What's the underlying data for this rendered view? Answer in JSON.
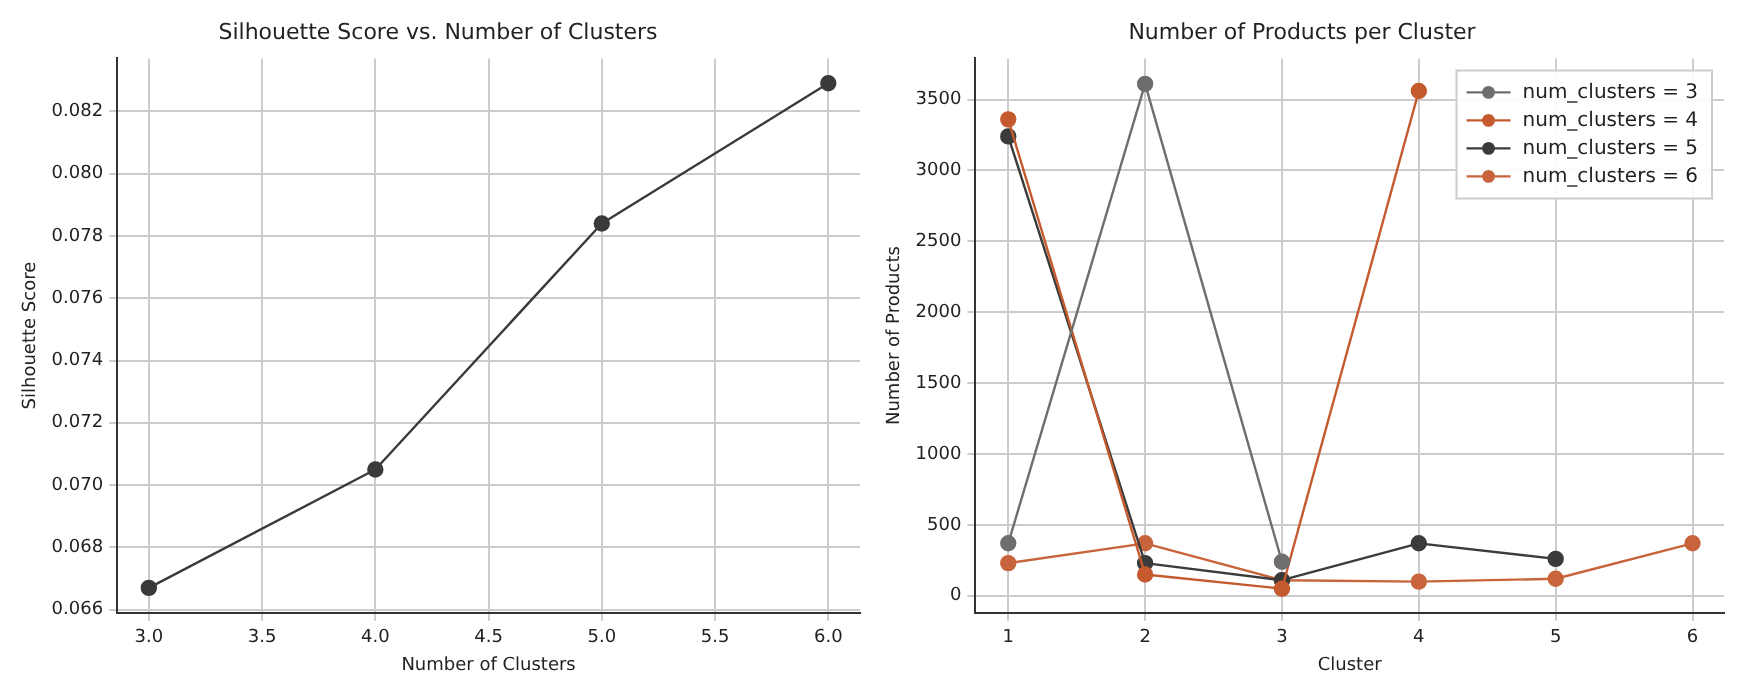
{
  "chart_data": [
    {
      "type": "line",
      "title": "Silhouette Score vs. Number of Clusters",
      "xlabel": "Number of Clusters",
      "ylabel": "Silhouette Score",
      "x": [
        3,
        4,
        5,
        6
      ],
      "series": [
        {
          "color": "#3a3a3a",
          "values": [
            0.0667,
            0.0705,
            0.0784,
            0.0829
          ]
        }
      ],
      "xlim": [
        2.86,
        6.14
      ],
      "xticks": [
        {
          "value": 3,
          "label": "3.0"
        },
        {
          "value": 3.5,
          "label": "3.5"
        },
        {
          "value": 4,
          "label": "4.0"
        },
        {
          "value": 4.5,
          "label": "4.5"
        },
        {
          "value": 5,
          "label": "5.0"
        },
        {
          "value": 5.5,
          "label": "5.5"
        },
        {
          "value": 6,
          "label": "6.0"
        }
      ],
      "ylim": [
        0.0659,
        0.0837
      ],
      "yticks": [
        {
          "value": 0.066,
          "label": "0.066"
        },
        {
          "value": 0.068,
          "label": "0.068"
        },
        {
          "value": 0.07,
          "label": "0.070"
        },
        {
          "value": 0.072,
          "label": "0.072"
        },
        {
          "value": 0.074,
          "label": "0.074"
        },
        {
          "value": 0.076,
          "label": "0.076"
        },
        {
          "value": 0.078,
          "label": "0.078"
        },
        {
          "value": 0.08,
          "label": "0.080"
        },
        {
          "value": 0.082,
          "label": "0.082"
        }
      ],
      "grid": true,
      "marker": "circle",
      "legend": false
    },
    {
      "type": "line",
      "title": "Number of Products per Cluster",
      "xlabel": "Cluster",
      "ylabel": "Number of Products",
      "series": [
        {
          "name": "num_clusters = 3",
          "color": "#6e6e6e",
          "x": [
            1,
            2,
            3
          ],
          "values": [
            370,
            3610,
            240
          ]
        },
        {
          "name": "num_clusters = 4",
          "color": "#c45a2e",
          "x": [
            1,
            2,
            3,
            4
          ],
          "values": [
            3360,
            150,
            50,
            3560
          ]
        },
        {
          "name": "num_clusters = 5",
          "color": "#3b3b3b",
          "x": [
            1,
            2,
            3,
            4,
            5
          ],
          "values": [
            3240,
            230,
            110,
            370,
            260
          ]
        },
        {
          "name": "num_clusters = 6",
          "color": "#c8643c",
          "x": [
            1,
            2,
            3,
            4,
            5,
            6
          ],
          "values": [
            230,
            370,
            110,
            100,
            120,
            370
          ]
        }
      ],
      "xlim": [
        0.76,
        6.23
      ],
      "xticks": [
        1,
        2,
        3,
        4,
        5,
        6
      ],
      "ylim": [
        -120,
        3790
      ],
      "yticks": [
        0,
        500,
        1000,
        1500,
        2000,
        2500,
        3000,
        3500
      ],
      "grid": true,
      "marker": "circle",
      "legend": "top right"
    }
  ]
}
